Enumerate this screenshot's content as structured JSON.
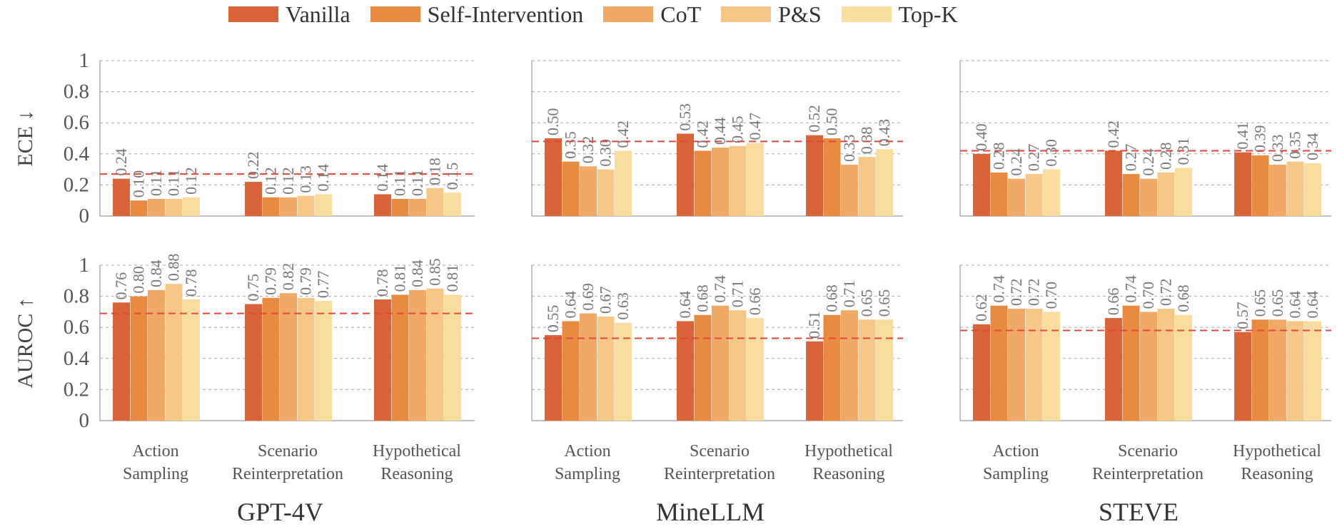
{
  "legend": [
    {
      "name": "Vanilla",
      "color": "#d9643a"
    },
    {
      "name": "Self-Intervention",
      "color": "#e88a40"
    },
    {
      "name": "CoT",
      "color": "#f0a966"
    },
    {
      "name": "P&S",
      "color": "#f6c787"
    },
    {
      "name": "Top-K",
      "color": "#f9dc9e"
    }
  ],
  "row_labels": [
    "ECE ↓",
    "AUROC ↑"
  ],
  "y_ticks": [
    "1",
    "0.8",
    "0.6",
    "0.4",
    "0.2",
    "0"
  ],
  "x_groups": [
    {
      "line1": "Action",
      "line2": "Sampling"
    },
    {
      "line1": "Scenario",
      "line2": "Reinterpretation"
    },
    {
      "line1": "Hypothetical",
      "line2": "Reasoning"
    }
  ],
  "model_titles": [
    "GPT-4V",
    "MineLLM",
    "STEVE"
  ],
  "chart_data": [
    {
      "type": "bar",
      "model": "GPT-4V",
      "metric": "ECE ↓",
      "ylim": [
        0,
        1
      ],
      "reference_line": 0.27,
      "categories": [
        "Action Sampling",
        "Scenario Reinterpretation",
        "Hypothetical Reasoning"
      ],
      "series": [
        {
          "name": "Vanilla",
          "values": [
            0.24,
            0.22,
            0.14
          ]
        },
        {
          "name": "Self-Intervention",
          "values": [
            0.1,
            0.12,
            0.11
          ]
        },
        {
          "name": "CoT",
          "values": [
            0.11,
            0.12,
            0.11
          ]
        },
        {
          "name": "P&S",
          "values": [
            0.11,
            0.13,
            0.18
          ]
        },
        {
          "name": "Top-K",
          "values": [
            0.12,
            0.14,
            0.15
          ]
        }
      ],
      "labels": [
        [
          "0.24",
          "0.10",
          "0.11",
          "0.11",
          "0.12"
        ],
        [
          "0.22",
          "0.12",
          "0.12",
          "0.13",
          "0.14"
        ],
        [
          "0.14",
          "0.11",
          "0.11",
          "0.18",
          "0.15"
        ]
      ]
    },
    {
      "type": "bar",
      "model": "MineLLM",
      "metric": "ECE ↓",
      "ylim": [
        0,
        1
      ],
      "reference_line": 0.48,
      "categories": [
        "Action Sampling",
        "Scenario Reinterpretation",
        "Hypothetical Reasoning"
      ],
      "series": [
        {
          "name": "Vanilla",
          "values": [
            0.5,
            0.53,
            0.52
          ]
        },
        {
          "name": "Self-Intervention",
          "values": [
            0.35,
            0.42,
            0.5
          ]
        },
        {
          "name": "CoT",
          "values": [
            0.32,
            0.44,
            0.33
          ]
        },
        {
          "name": "P&S",
          "values": [
            0.3,
            0.45,
            0.38
          ]
        },
        {
          "name": "Top-K",
          "values": [
            0.42,
            0.47,
            0.43
          ]
        }
      ],
      "labels": [
        [
          "0.50",
          "0.35",
          "0.32",
          "0.30",
          "0.42"
        ],
        [
          "0.53",
          "0.42",
          "0.44",
          "0.45",
          "0.47"
        ],
        [
          "0.52",
          "0.50",
          "0.33",
          "0.38",
          "0.43"
        ]
      ]
    },
    {
      "type": "bar",
      "model": "STEVE",
      "metric": "ECE ↓",
      "ylim": [
        0,
        1
      ],
      "reference_line": 0.42,
      "categories": [
        "Action Sampling",
        "Scenario Reinterpretation",
        "Hypothetical Reasoning"
      ],
      "series": [
        {
          "name": "Vanilla",
          "values": [
            0.4,
            0.42,
            0.41
          ]
        },
        {
          "name": "Self-Intervention",
          "values": [
            0.28,
            0.27,
            0.39
          ]
        },
        {
          "name": "CoT",
          "values": [
            0.24,
            0.24,
            0.33
          ]
        },
        {
          "name": "P&S",
          "values": [
            0.27,
            0.28,
            0.35
          ]
        },
        {
          "name": "Top-K",
          "values": [
            0.3,
            0.31,
            0.34
          ]
        }
      ],
      "labels": [
        [
          "0.40",
          "0.28",
          "0.24",
          "0.27",
          "0.30"
        ],
        [
          "0.42",
          "0.27",
          "0.24",
          "0.28",
          "0.31"
        ],
        [
          "0.41",
          "0.39",
          "0.33",
          "0.35",
          "0.34"
        ]
      ]
    },
    {
      "type": "bar",
      "model": "GPT-4V",
      "metric": "AUROC ↑",
      "ylim": [
        0,
        1
      ],
      "reference_line": 0.69,
      "categories": [
        "Action Sampling",
        "Scenario Reinterpretation",
        "Hypothetical Reasoning"
      ],
      "series": [
        {
          "name": "Vanilla",
          "values": [
            0.76,
            0.75,
            0.78
          ]
        },
        {
          "name": "Self-Intervention",
          "values": [
            0.8,
            0.79,
            0.81
          ]
        },
        {
          "name": "CoT",
          "values": [
            0.84,
            0.82,
            0.84
          ]
        },
        {
          "name": "P&S",
          "values": [
            0.88,
            0.79,
            0.85
          ]
        },
        {
          "name": "Top-K",
          "values": [
            0.78,
            0.77,
            0.81
          ]
        }
      ],
      "labels": [
        [
          "0.76",
          "0.80",
          "0.84",
          "0.88",
          "0.78"
        ],
        [
          "0.75",
          "0.79",
          "0.82",
          "0.79",
          "0.77"
        ],
        [
          "0.78",
          "0.81",
          "0.84",
          "0.85",
          "0.81"
        ]
      ]
    },
    {
      "type": "bar",
      "model": "MineLLM",
      "metric": "AUROC ↑",
      "ylim": [
        0,
        1
      ],
      "reference_line": 0.53,
      "categories": [
        "Action Sampling",
        "Scenario Reinterpretation",
        "Hypothetical Reasoning"
      ],
      "series": [
        {
          "name": "Vanilla",
          "values": [
            0.55,
            0.64,
            0.51
          ]
        },
        {
          "name": "Self-Intervention",
          "values": [
            0.64,
            0.68,
            0.68
          ]
        },
        {
          "name": "CoT",
          "values": [
            0.69,
            0.74,
            0.71
          ]
        },
        {
          "name": "P&S",
          "values": [
            0.67,
            0.71,
            0.65
          ]
        },
        {
          "name": "Top-K",
          "values": [
            0.63,
            0.66,
            0.65
          ]
        }
      ],
      "labels": [
        [
          "0.55",
          "0.64",
          "0.69",
          "0.67",
          "0.63"
        ],
        [
          "0.64",
          "0.68",
          "0.74",
          "0.71",
          "0.66"
        ],
        [
          "0.51",
          "0.68",
          "0.71",
          "0.65",
          "0.65"
        ]
      ]
    },
    {
      "type": "bar",
      "model": "STEVE",
      "metric": "AUROC ↑",
      "ylim": [
        0,
        1
      ],
      "reference_line": 0.58,
      "categories": [
        "Action Sampling",
        "Scenario Reinterpretation",
        "Hypothetical Reasoning"
      ],
      "series": [
        {
          "name": "Vanilla",
          "values": [
            0.62,
            0.66,
            0.57
          ]
        },
        {
          "name": "Self-Intervention",
          "values": [
            0.74,
            0.74,
            0.65
          ]
        },
        {
          "name": "CoT",
          "values": [
            0.72,
            0.7,
            0.65
          ]
        },
        {
          "name": "P&S",
          "values": [
            0.72,
            0.72,
            0.64
          ]
        },
        {
          "name": "Top-K",
          "values": [
            0.7,
            0.68,
            0.64
          ]
        }
      ],
      "labels": [
        [
          "0.62",
          "0.74",
          "0.72",
          "0.72",
          "0.70"
        ],
        [
          "0.66",
          "0.74",
          "0.70",
          "0.72",
          "0.68"
        ],
        [
          "0.57",
          "0.65",
          "0.65",
          "0.64",
          "0.64"
        ]
      ]
    }
  ]
}
